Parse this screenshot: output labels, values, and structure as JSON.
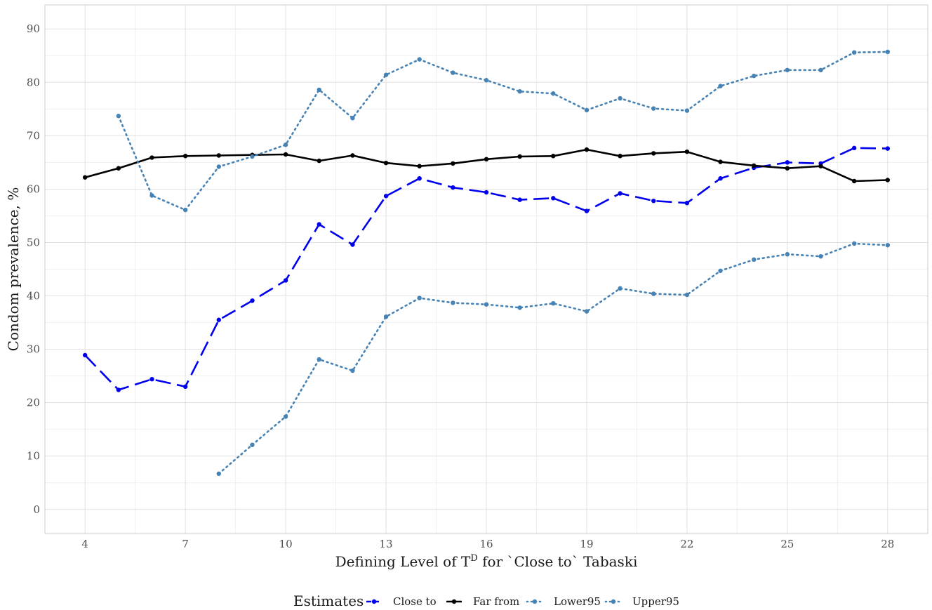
{
  "chart_data": {
    "type": "line",
    "title": "",
    "xlabel": "Defining Level of T",
    "xlabel_sup": "D",
    "xlabel_rest": " for `Close to` Tabaski",
    "ylabel": "Condom prevalence, %",
    "xlim": [
      2.8,
      29.2
    ],
    "ylim": [
      -4.5,
      94.5
    ],
    "x_ticks": [
      4,
      7,
      10,
      13,
      16,
      19,
      22,
      25,
      28
    ],
    "y_ticks": [
      0,
      10,
      20,
      30,
      40,
      50,
      60,
      70,
      80,
      90
    ],
    "x_tick_labels": [
      "4",
      "7",
      "10",
      "13",
      "16",
      "19",
      "22",
      "25",
      "28"
    ],
    "y_tick_labels": [
      "0",
      "10",
      "20",
      "30",
      "40",
      "50",
      "60",
      "70",
      "80",
      "90"
    ],
    "grid": true,
    "legend": {
      "title": "Estimates",
      "position": "bottom"
    },
    "series": [
      {
        "name": "Close to",
        "color": "#0000ee",
        "dash": "dashed",
        "x": [
          4,
          5,
          6,
          7,
          8,
          9,
          10,
          11,
          12,
          13,
          14,
          15,
          16,
          17,
          18,
          19,
          20,
          21,
          22,
          23,
          24,
          25,
          26,
          27,
          28
        ],
        "values": [
          28.9,
          22.4,
          24.4,
          23.0,
          35.5,
          39.1,
          42.9,
          53.4,
          49.6,
          58.7,
          62.0,
          60.3,
          59.4,
          58.0,
          58.3,
          55.9,
          59.2,
          57.8,
          57.4,
          62.0,
          64.0,
          65.0,
          64.8,
          67.7,
          67.6
        ]
      },
      {
        "name": "Far from",
        "color": "#000000",
        "dash": "solid",
        "x": [
          4,
          5,
          6,
          7,
          8,
          9,
          10,
          11,
          12,
          13,
          14,
          15,
          16,
          17,
          18,
          19,
          20,
          21,
          22,
          23,
          24,
          25,
          26,
          27,
          28
        ],
        "values": [
          62.2,
          63.9,
          65.9,
          66.2,
          66.3,
          66.4,
          66.5,
          65.3,
          66.3,
          64.9,
          64.3,
          64.8,
          65.6,
          66.1,
          66.2,
          67.4,
          66.2,
          66.7,
          67.0,
          65.1,
          64.4,
          63.9,
          64.3,
          61.5,
          61.7
        ]
      },
      {
        "name": "Lower95",
        "color": "#4682b4",
        "dash": "dotted",
        "x": [
          8,
          9,
          10,
          11,
          12,
          13,
          14,
          15,
          16,
          17,
          18,
          19,
          20,
          21,
          22,
          23,
          24,
          25,
          26,
          27,
          28
        ],
        "values": [
          6.7,
          12.1,
          17.4,
          28.1,
          26.0,
          36.1,
          39.6,
          38.7,
          38.4,
          37.8,
          38.6,
          37.1,
          41.4,
          40.4,
          40.2,
          44.7,
          46.8,
          47.8,
          47.4,
          49.8,
          49.5
        ]
      },
      {
        "name": "Upper95",
        "color": "#4682b4",
        "dash": "dotted",
        "x": [
          5,
          6,
          7,
          8,
          9,
          10,
          11,
          12,
          13,
          14,
          15,
          16,
          17,
          18,
          19,
          20,
          21,
          22,
          23,
          24,
          25,
          26,
          27,
          28
        ],
        "values": [
          73.7,
          58.8,
          56.1,
          64.2,
          66.1,
          68.3,
          78.6,
          73.3,
          81.4,
          84.3,
          81.8,
          80.4,
          78.3,
          77.9,
          74.8,
          77.0,
          75.1,
          74.7,
          79.3,
          81.2,
          82.3,
          82.3,
          85.6,
          85.7
        ]
      }
    ]
  }
}
